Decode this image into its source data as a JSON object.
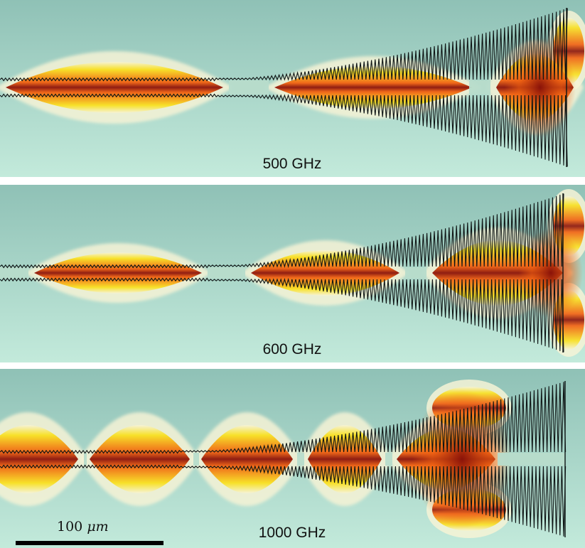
{
  "colors": {
    "background_top": "#8fc1b6",
    "background_bottom": "#c3eadb",
    "field_outer": "#f6f3d6",
    "field_mid": "#f8e020",
    "field_hot": "#f06010",
    "field_peak": "#8a1208",
    "waveguide_line": "#0e1414",
    "waveguide_core": "#b7dccb"
  },
  "panels": [
    {
      "label": "500 GHz"
    },
    {
      "label": "600 GHz"
    },
    {
      "label": "1000 GHz"
    }
  ],
  "scale_bar": {
    "value": "100",
    "unit": "μm"
  }
}
